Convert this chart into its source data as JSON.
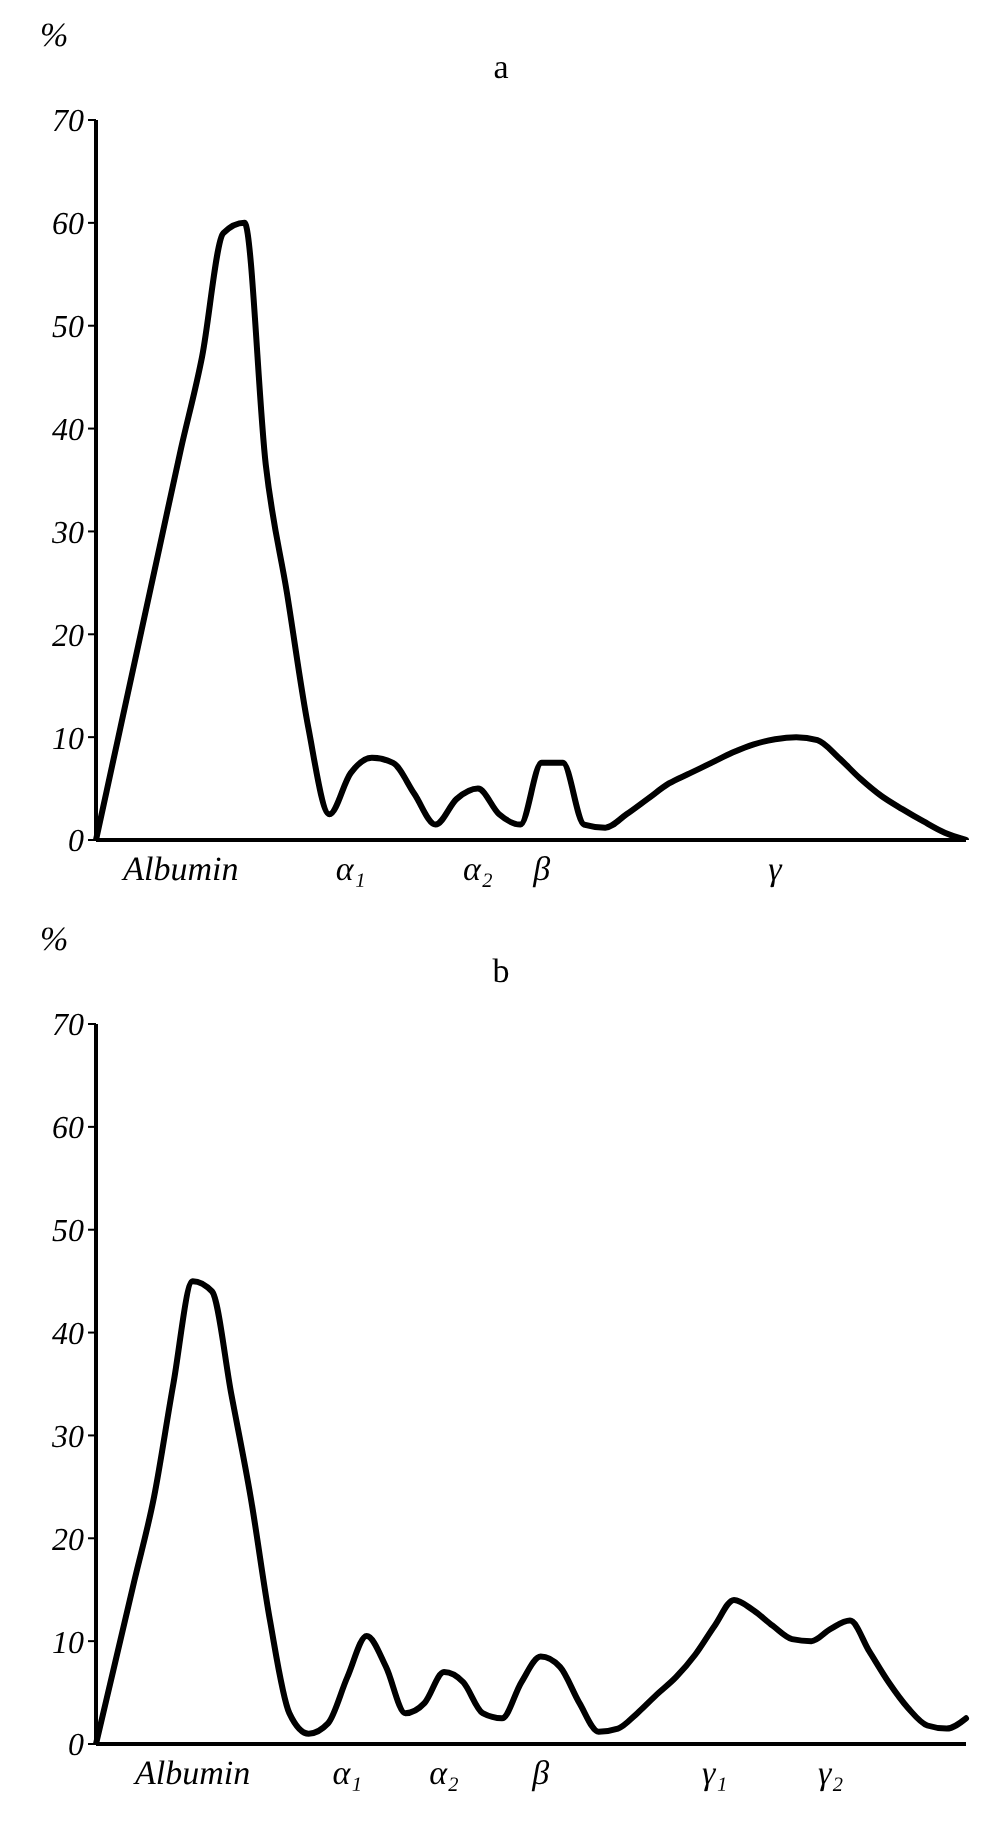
{
  "chart_data": [
    {
      "type": "line",
      "title": "a",
      "ylabel": "%",
      "color": "#000000",
      "ylim": [
        0,
        70
      ],
      "yticks": [
        0,
        10,
        20,
        30,
        40,
        50,
        60,
        70
      ],
      "categories": [
        null,
        null,
        null,
        null,
        "Albumin",
        null,
        null,
        null,
        null,
        null,
        null,
        null,
        "α₁",
        null,
        null,
        null,
        null,
        null,
        "α₂",
        null,
        null,
        "β",
        null,
        null,
        null,
        null,
        null,
        null,
        null,
        null,
        null,
        null,
        "γ",
        null,
        null,
        null,
        null,
        null,
        null,
        null,
        null,
        null
      ],
      "values": [
        0,
        9.5,
        19,
        28.5,
        38,
        47,
        59,
        60,
        36.5,
        24,
        11,
        2.5,
        6.5,
        8,
        7.5,
        4.5,
        1.5,
        4,
        5,
        2.5,
        1.5,
        7.5,
        7.5,
        1.5,
        1.2,
        2.5,
        4,
        5.5,
        6.5,
        7.5,
        8.5,
        9.3,
        9.8,
        10,
        9.7,
        8,
        6,
        4.3,
        3,
        1.8,
        0.7,
        0
      ]
    },
    {
      "type": "line",
      "title": "b",
      "ylabel": "%",
      "color": "#000000",
      "ylim": [
        0,
        70
      ],
      "yticks": [
        0,
        10,
        20,
        30,
        40,
        50,
        60,
        70
      ],
      "categories": [
        null,
        null,
        null,
        null,
        null,
        "Albumin",
        null,
        null,
        null,
        null,
        null,
        null,
        null,
        "α₁",
        null,
        null,
        null,
        null,
        "α₂",
        null,
        null,
        null,
        null,
        "β",
        null,
        null,
        null,
        null,
        null,
        null,
        null,
        null,
        "γ₁",
        null,
        null,
        null,
        null,
        null,
        "γ₂",
        null,
        null,
        null,
        null,
        null,
        null,
        null
      ],
      "values": [
        0,
        8,
        16,
        24,
        35,
        45,
        44,
        34,
        24,
        12,
        3,
        1,
        2,
        6.5,
        10.5,
        7.5,
        3,
        4,
        7,
        6,
        3,
        2.5,
        6,
        8.5,
        7.5,
        4,
        1.2,
        1.5,
        3,
        4.8,
        6.5,
        8.7,
        11.5,
        14,
        13,
        11.5,
        10.2,
        10,
        11.2,
        12,
        9,
        6,
        3.5,
        1.8,
        1.5,
        2.5
      ]
    }
  ]
}
